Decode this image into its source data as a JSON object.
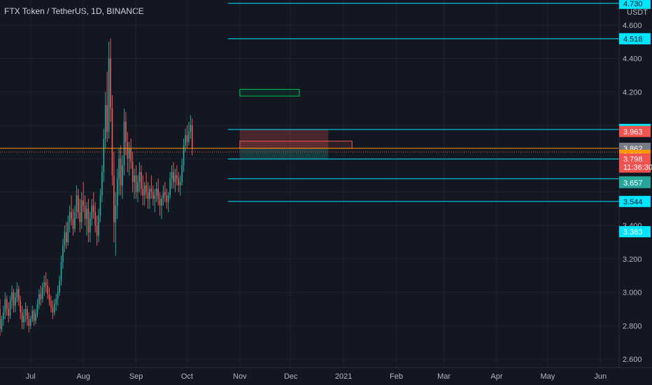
{
  "header": {
    "title": "FTX Token / TetherUS, 1D, BINANCE"
  },
  "colors": {
    "background": "#131722",
    "grid": "#1e222d",
    "up": "#26a69a",
    "down": "#ef5350",
    "hline": "#00e5ff",
    "axis_text": "#b2b5be",
    "current_price": "#ff9800",
    "green_box": "#00c853",
    "red_box": "#ef5350"
  },
  "chart_data": {
    "type": "candlestick",
    "title": "FTX Token / TetherUS, 1D, BINANCE",
    "currency": "USDT",
    "ylim": [
      2.55,
      4.75
    ],
    "y_ticks": [
      "2.600",
      "2.800",
      "3.000",
      "3.200",
      "3.400",
      "4.200",
      "4.400",
      "4.600"
    ],
    "x_range": [
      "2020-06-13",
      "2021-06-12"
    ],
    "x_ticks": [
      {
        "label": "Jul",
        "date": "2020-07-01"
      },
      {
        "label": "Aug",
        "date": "2020-08-01"
      },
      {
        "label": "Sep",
        "date": "2020-09-01"
      },
      {
        "label": "Oct",
        "date": "2020-10-01"
      },
      {
        "label": "Nov",
        "date": "2020-11-01"
      },
      {
        "label": "Dec",
        "date": "2020-12-01"
      },
      {
        "label": "2021",
        "date": "2021-01-01"
      },
      {
        "label": "Feb",
        "date": "2021-02-01"
      },
      {
        "label": "Mar",
        "date": "2021-03-01"
      },
      {
        "label": "Apr",
        "date": "2021-04-01"
      },
      {
        "label": "May",
        "date": "2021-05-01"
      },
      {
        "label": "Jun",
        "date": "2021-06-01"
      }
    ],
    "candles_start": "2020-06-13",
    "candles": [
      [
        2.9,
        2.96,
        2.74,
        2.78
      ],
      [
        2.78,
        2.86,
        2.76,
        2.84
      ],
      [
        2.84,
        2.92,
        2.8,
        2.88
      ],
      [
        2.88,
        3.0,
        2.84,
        2.96
      ],
      [
        2.96,
        2.98,
        2.86,
        2.9
      ],
      [
        2.9,
        2.94,
        2.82,
        2.86
      ],
      [
        2.86,
        2.98,
        2.84,
        2.95
      ],
      [
        2.95,
        3.04,
        2.9,
        3.0
      ],
      [
        3.0,
        3.02,
        2.88,
        2.92
      ],
      [
        2.92,
        3.0,
        2.88,
        2.97
      ],
      [
        2.97,
        3.06,
        2.94,
        3.02
      ],
      [
        3.02,
        3.04,
        2.92,
        2.95
      ],
      [
        2.95,
        2.98,
        2.84,
        2.88
      ],
      [
        2.88,
        2.92,
        2.78,
        2.82
      ],
      [
        2.82,
        2.9,
        2.78,
        2.86
      ],
      [
        2.86,
        2.94,
        2.82,
        2.9
      ],
      [
        2.9,
        2.92,
        2.8,
        2.84
      ],
      [
        2.84,
        2.88,
        2.76,
        2.8
      ],
      [
        2.8,
        2.86,
        2.78,
        2.84
      ],
      [
        2.84,
        2.92,
        2.82,
        2.89
      ],
      [
        2.89,
        2.9,
        2.8,
        2.83
      ],
      [
        2.83,
        2.9,
        2.81,
        2.87
      ],
      [
        2.87,
        2.96,
        2.85,
        2.93
      ],
      [
        2.93,
        3.02,
        2.9,
        2.99
      ],
      [
        2.99,
        3.04,
        2.92,
        2.96
      ],
      [
        2.96,
        3.06,
        2.94,
        3.03
      ],
      [
        3.03,
        3.1,
        2.98,
        3.06
      ],
      [
        3.06,
        3.12,
        3.0,
        3.04
      ],
      [
        3.04,
        3.08,
        2.96,
        2.99
      ],
      [
        2.99,
        3.03,
        2.92,
        2.95
      ],
      [
        2.95,
        2.98,
        2.88,
        2.91
      ],
      [
        2.91,
        2.95,
        2.84,
        2.88
      ],
      [
        2.88,
        2.96,
        2.86,
        2.93
      ],
      [
        2.93,
        2.99,
        2.89,
        2.96
      ],
      [
        2.96,
        3.04,
        2.92,
        3.0
      ],
      [
        3.0,
        3.1,
        2.98,
        3.07
      ],
      [
        3.07,
        3.22,
        3.04,
        3.18
      ],
      [
        3.18,
        3.32,
        3.14,
        3.28
      ],
      [
        3.28,
        3.4,
        3.24,
        3.36
      ],
      [
        3.36,
        3.42,
        3.26,
        3.3
      ],
      [
        3.3,
        3.46,
        3.28,
        3.42
      ],
      [
        3.42,
        3.52,
        3.36,
        3.48
      ],
      [
        3.48,
        3.58,
        3.4,
        3.44
      ],
      [
        3.44,
        3.5,
        3.34,
        3.38
      ],
      [
        3.38,
        3.52,
        3.36,
        3.48
      ],
      [
        3.48,
        3.64,
        3.44,
        3.58
      ],
      [
        3.58,
        3.62,
        3.44,
        3.48
      ],
      [
        3.48,
        3.56,
        3.36,
        3.42
      ],
      [
        3.42,
        3.6,
        3.38,
        3.55
      ],
      [
        3.55,
        3.66,
        3.48,
        3.52
      ],
      [
        3.52,
        3.58,
        3.4,
        3.44
      ],
      [
        3.44,
        3.54,
        3.34,
        3.5
      ],
      [
        3.5,
        3.56,
        3.3,
        3.36
      ],
      [
        3.36,
        3.48,
        3.3,
        3.44
      ],
      [
        3.44,
        3.56,
        3.4,
        3.52
      ],
      [
        3.52,
        3.6,
        3.44,
        3.48
      ],
      [
        3.48,
        3.54,
        3.36,
        3.4
      ],
      [
        3.4,
        3.46,
        3.28,
        3.34
      ],
      [
        3.34,
        3.5,
        3.3,
        3.46
      ],
      [
        3.46,
        3.62,
        3.42,
        3.58
      ],
      [
        3.58,
        3.76,
        3.54,
        3.72
      ],
      [
        3.72,
        3.98,
        3.66,
        3.92
      ],
      [
        3.92,
        4.2,
        3.86,
        4.12
      ],
      [
        4.12,
        4.32,
        3.9,
        3.96
      ],
      [
        3.96,
        4.5,
        3.92,
        4.4
      ],
      [
        4.4,
        4.52,
        4.02,
        4.1
      ],
      [
        4.1,
        4.18,
        3.64,
        3.7
      ],
      [
        3.7,
        3.84,
        3.3,
        3.42
      ],
      [
        3.42,
        3.6,
        3.22,
        3.52
      ],
      [
        3.52,
        3.74,
        3.44,
        3.68
      ],
      [
        3.68,
        3.86,
        3.58,
        3.8
      ],
      [
        3.8,
        3.88,
        3.58,
        3.64
      ],
      [
        3.64,
        3.82,
        3.56,
        3.76
      ],
      [
        3.76,
        4.1,
        3.7,
        4.02
      ],
      [
        4.02,
        4.08,
        3.82,
        3.9
      ],
      [
        3.9,
        3.96,
        3.72,
        3.8
      ],
      [
        3.8,
        3.9,
        3.7,
        3.86
      ],
      [
        3.86,
        3.92,
        3.74,
        3.78
      ],
      [
        3.78,
        3.84,
        3.6,
        3.66
      ],
      [
        3.66,
        3.74,
        3.56,
        3.7
      ],
      [
        3.7,
        3.76,
        3.56,
        3.6
      ],
      [
        3.6,
        3.7,
        3.54,
        3.66
      ],
      [
        3.66,
        3.78,
        3.6,
        3.72
      ],
      [
        3.72,
        3.76,
        3.58,
        3.62
      ],
      [
        3.62,
        3.7,
        3.52,
        3.58
      ],
      [
        3.58,
        3.66,
        3.52,
        3.64
      ],
      [
        3.64,
        3.72,
        3.56,
        3.6
      ],
      [
        3.6,
        3.66,
        3.5,
        3.56
      ],
      [
        3.56,
        3.64,
        3.5,
        3.62
      ],
      [
        3.62,
        3.7,
        3.56,
        3.6
      ],
      [
        3.6,
        3.64,
        3.52,
        3.56
      ],
      [
        3.56,
        3.62,
        3.48,
        3.58
      ],
      [
        3.58,
        3.66,
        3.54,
        3.62
      ],
      [
        3.62,
        3.68,
        3.52,
        3.56
      ],
      [
        3.56,
        3.6,
        3.46,
        3.52
      ],
      [
        3.52,
        3.58,
        3.44,
        3.56
      ],
      [
        3.56,
        3.64,
        3.52,
        3.6
      ],
      [
        3.6,
        3.66,
        3.54,
        3.58
      ],
      [
        3.58,
        3.62,
        3.5,
        3.54
      ],
      [
        3.54,
        3.6,
        3.48,
        3.58
      ],
      [
        3.58,
        3.72,
        3.56,
        3.68
      ],
      [
        3.68,
        3.76,
        3.62,
        3.72
      ],
      [
        3.72,
        3.78,
        3.62,
        3.66
      ],
      [
        3.66,
        3.74,
        3.6,
        3.7
      ],
      [
        3.7,
        3.76,
        3.64,
        3.68
      ],
      [
        3.68,
        3.72,
        3.6,
        3.64
      ],
      [
        3.64,
        3.7,
        3.58,
        3.66
      ],
      [
        3.66,
        3.8,
        3.64,
        3.76
      ],
      [
        3.76,
        3.92,
        3.72,
        3.88
      ],
      [
        3.88,
        3.98,
        3.84,
        3.94
      ],
      [
        3.94,
        4.0,
        3.86,
        3.9
      ],
      [
        3.9,
        4.02,
        3.88,
        3.96
      ],
      [
        3.96,
        4.06,
        3.92,
        4.0
      ],
      [
        4.0,
        4.04,
        3.82,
        3.86
      ]
    ],
    "horizontal_lines": [
      {
        "value": 4.73,
        "label": "4.730"
      },
      {
        "value": 4.518,
        "label": "4.518"
      },
      {
        "value": 3.975,
        "label": "3.975"
      },
      {
        "value": 3.798,
        "label": "3.798"
      },
      {
        "value": 3.68
      },
      {
        "value": 3.544,
        "label": "3.544"
      }
    ],
    "price_labels": [
      {
        "value": 3.963,
        "label": "3.963",
        "color": "#ef5350"
      },
      {
        "value": 3.862,
        "label": "3.862",
        "color": "#787b86"
      },
      {
        "value": 3.82,
        "label": "3.820",
        "color": "#ff9800"
      },
      {
        "value": 3.798,
        "label": "3.798",
        "color": "#ef5350"
      },
      {
        "value": 3.661,
        "label": "3.661",
        "color": "#26a69a"
      },
      {
        "value": 3.657,
        "label": "3.657",
        "color": "#26a69a"
      },
      {
        "value": 3.363,
        "label": "3.363",
        "color": "#00e5ff"
      }
    ],
    "countdown": {
      "label": "11:36:30",
      "value": 3.75
    },
    "current_price": 3.862,
    "order_line": 3.84,
    "zones": [
      {
        "kind": "green",
        "x0": "2020-11-01",
        "x1": "2020-12-06",
        "y0": 4.175,
        "y1": 4.215
      },
      {
        "kind": "stop",
        "x0": "2020-11-01",
        "x1": "2020-12-23",
        "y0": 3.862,
        "y1": 3.975
      },
      {
        "kind": "target",
        "x0": "2020-11-01",
        "x1": "2020-12-23",
        "y0": 3.798,
        "y1": 3.862
      },
      {
        "kind": "red",
        "x0": "2020-11-01",
        "x1": "2021-01-06",
        "y0": 3.862,
        "y1": 3.905
      }
    ]
  }
}
